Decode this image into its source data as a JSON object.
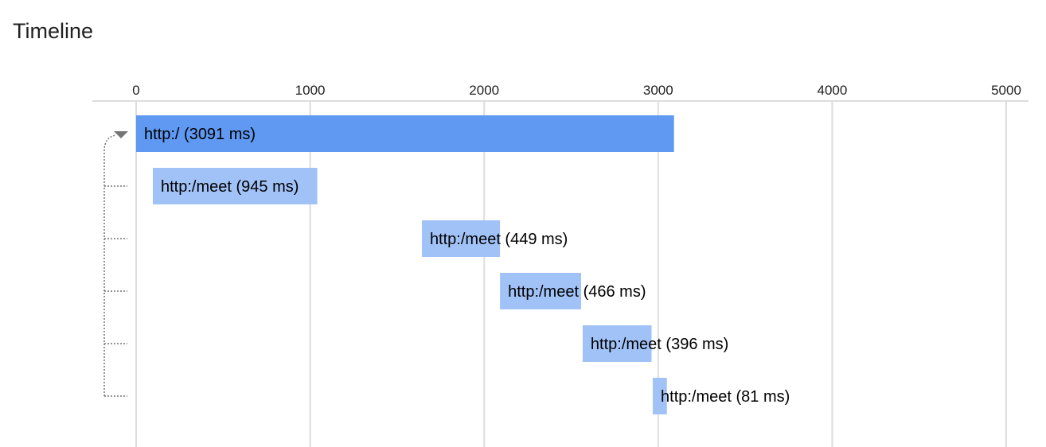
{
  "header": {
    "title": "Timeline"
  },
  "chart_data": {
    "type": "timeline",
    "xlim": [
      0,
      5000
    ],
    "x_ticks": [
      "0",
      "1000",
      "2000",
      "3000",
      "4000",
      "5000"
    ],
    "grid": true,
    "colors": {
      "root": "#5f99f2",
      "child": "#a1c2f7",
      "grid": "#dddddd",
      "connector": "#757575"
    },
    "spans": [
      {
        "label": "http:/ (3091 ms)",
        "name": "http:/",
        "start": 0,
        "duration": 3091,
        "level": 0
      },
      {
        "label": "http:/meet (945 ms)",
        "name": "http:/meet",
        "start": 96,
        "duration": 945,
        "level": 1
      },
      {
        "label": "http:/meet (449 ms)",
        "name": "http:/meet",
        "start": 1642,
        "duration": 449,
        "level": 1
      },
      {
        "label": "http:/meet (466 ms)",
        "name": "http:/meet",
        "start": 2091,
        "duration": 466,
        "level": 1
      },
      {
        "label": "http:/meet (396 ms)",
        "name": "http:/meet",
        "start": 2566,
        "duration": 396,
        "level": 1
      },
      {
        "label": "http:/meet (81 ms)",
        "name": "http:/meet",
        "start": 2969,
        "duration": 81,
        "level": 1
      }
    ]
  }
}
